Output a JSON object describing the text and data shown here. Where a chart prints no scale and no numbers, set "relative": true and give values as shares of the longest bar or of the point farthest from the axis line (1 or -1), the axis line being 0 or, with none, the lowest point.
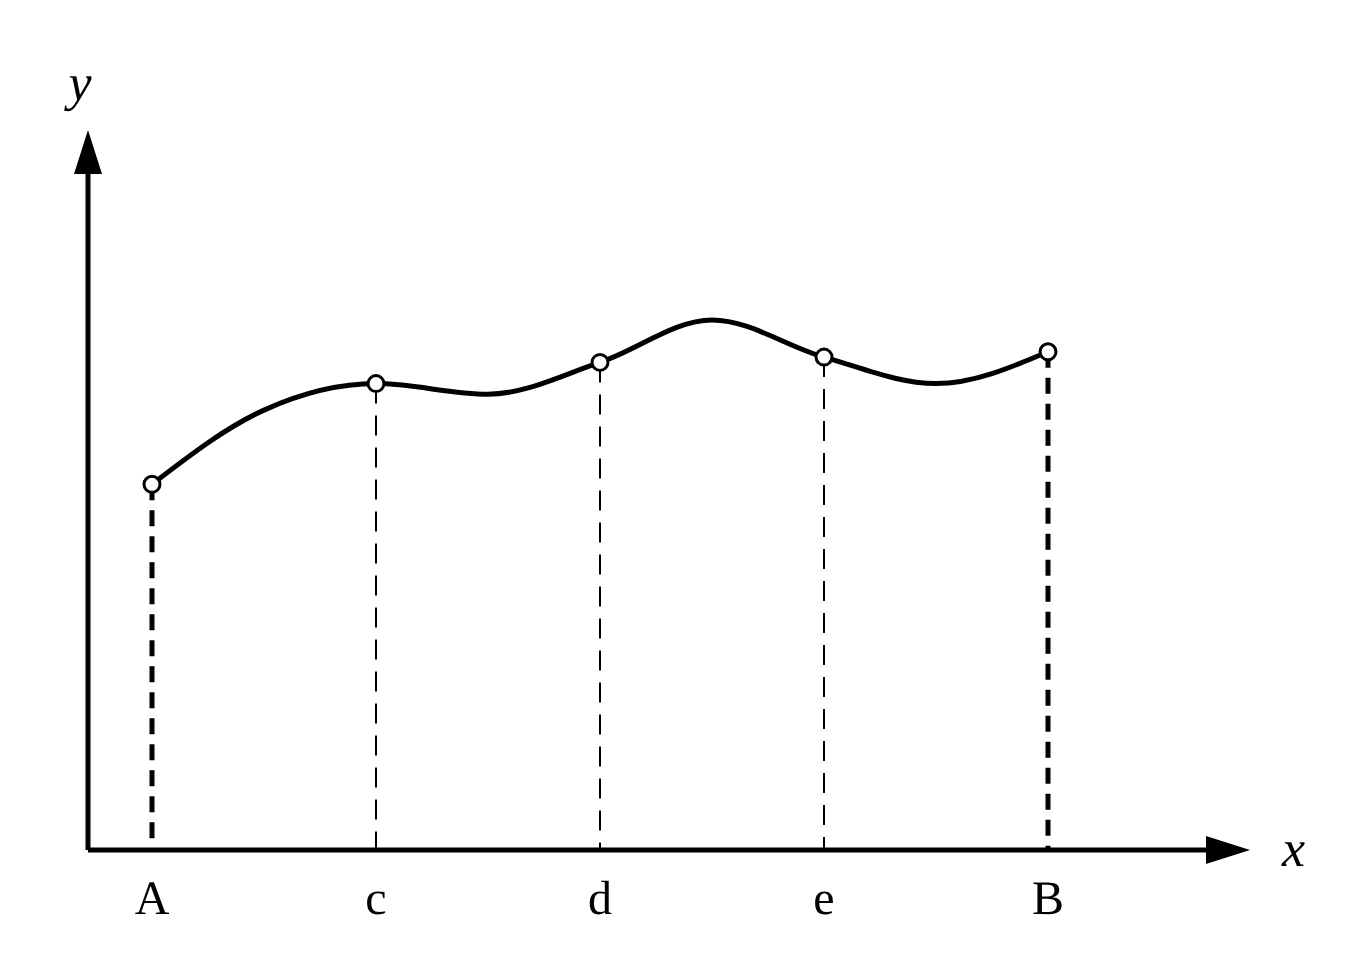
{
  "chart_data": {
    "type": "line",
    "relative": true,
    "xlabel": "x",
    "ylabel": "y",
    "categories": [
      "A",
      null,
      "c",
      null,
      "d",
      null,
      "e",
      null,
      "B"
    ],
    "series": [
      {
        "color": "#000000",
        "values": [
          0.69,
          0.83,
          0.88,
          0.86,
          0.92,
          1,
          0.93,
          0.88,
          0.94
        ]
      }
    ],
    "marker": "circle",
    "line_style": "solid",
    "grid": "x",
    "ref_lines": [
      {
        "axis": "x",
        "value": "A",
        "line_style": "dashed"
      },
      {
        "axis": "x",
        "value": "B",
        "line_style": "dashed"
      }
    ]
  }
}
